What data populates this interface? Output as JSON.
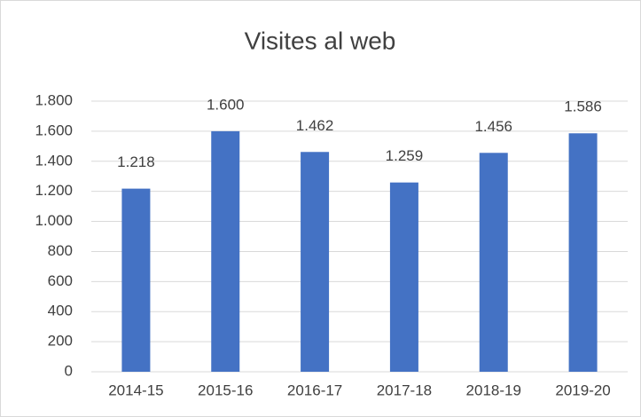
{
  "chart_data": {
    "type": "bar",
    "title": "Visites al web",
    "categories": [
      "2014-15",
      "2015-16",
      "2016-17",
      "2017-18",
      "2018-19",
      "2019-20"
    ],
    "values": [
      1218,
      1600,
      1462,
      1259,
      1456,
      1586
    ],
    "value_labels": [
      "1.218",
      "1.600",
      "1.462",
      "1.259",
      "1.456",
      "1.586"
    ],
    "color": "#4472c4",
    "ylim": [
      0,
      1800
    ],
    "yticks": [
      0,
      200,
      400,
      600,
      800,
      {
        "value": 1000,
        "label": "1.000"
      },
      {
        "value": 1200,
        "label": "1.200"
      },
      {
        "value": 1400,
        "label": "1.400"
      },
      {
        "value": 1600,
        "label": "1.600"
      },
      {
        "value": 1800,
        "label": "1.800"
      }
    ],
    "grid": true
  }
}
